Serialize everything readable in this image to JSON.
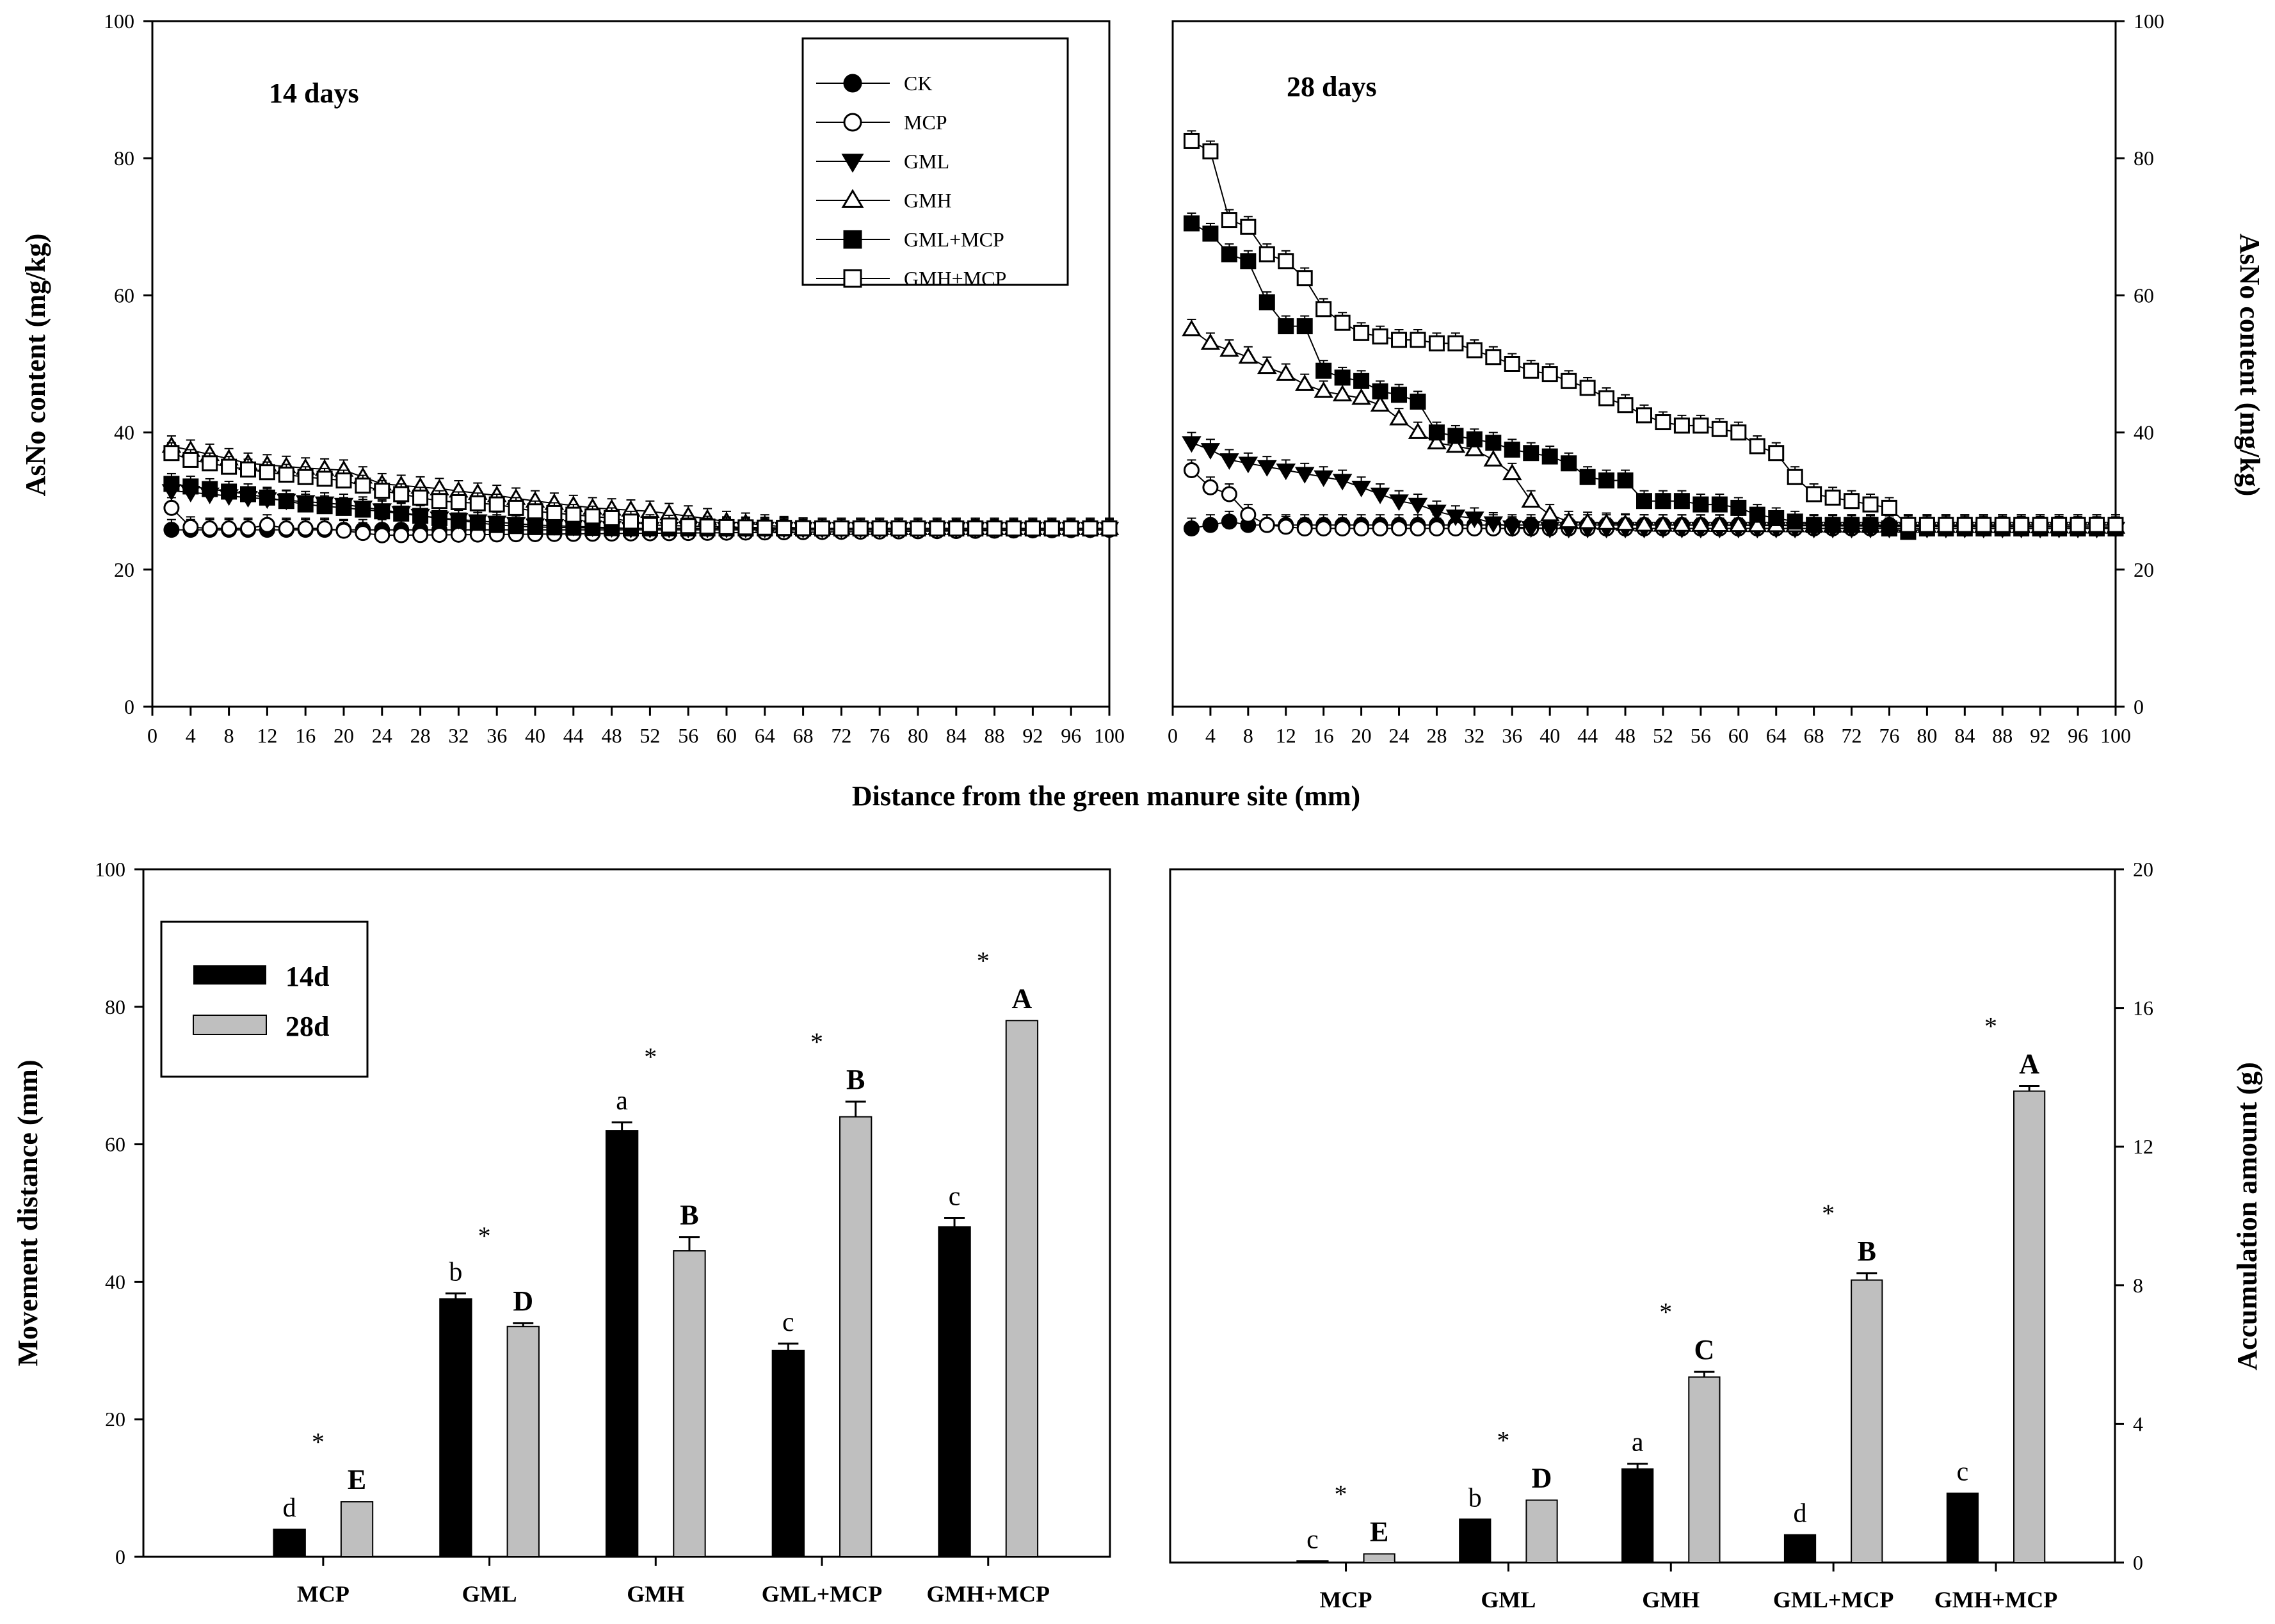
{
  "figure": {
    "shared_xlabel": "Distance from the green manure site (mm)"
  },
  "chart_data": [
    {
      "id": "panel-a",
      "type": "line",
      "title": "14 days",
      "xlabel": "Distance from the green manure site (mm)",
      "ylabel": "AsNo content (mg/kg)",
      "xlim": [
        0,
        100
      ],
      "ylim": [
        0,
        100
      ],
      "xticks": [
        0,
        4,
        8,
        12,
        16,
        20,
        24,
        28,
        32,
        36,
        40,
        44,
        48,
        52,
        56,
        60,
        64,
        68,
        72,
        76,
        80,
        84,
        88,
        92,
        96,
        100
      ],
      "yticks": [
        0,
        20,
        40,
        60,
        80,
        100
      ],
      "legend": {
        "position": "top-right",
        "entries": [
          "CK",
          "MCP",
          "GML",
          "GMH",
          "GML+MCP",
          "GMH+MCP"
        ]
      },
      "series": [
        {
          "name": "CK",
          "marker": "circle-filled",
          "points": [
            [
              2,
              25.8
            ],
            [
              96,
              25.8
            ],
            [
              100,
              25.8
            ]
          ]
        },
        {
          "name": "MCP",
          "marker": "circle-open",
          "points": [
            [
              2,
              29
            ],
            [
              4,
              26.2
            ],
            [
              6,
              26
            ],
            [
              8,
              26
            ],
            [
              10,
              26
            ],
            [
              12,
              26.5
            ],
            [
              14,
              26
            ],
            [
              16,
              26
            ],
            [
              18,
              26
            ],
            [
              24,
              25
            ],
            [
              100,
              25.8
            ]
          ]
        },
        {
          "name": "GML",
          "marker": "triangle-down-filled",
          "points": [
            [
              2,
              31.5
            ],
            [
              10,
              30.5
            ],
            [
              20,
              29.5
            ],
            [
              30,
              27.5
            ],
            [
              40,
              26.5
            ],
            [
              50,
              26
            ],
            [
              60,
              26
            ],
            [
              100,
              26
            ]
          ]
        },
        {
          "name": "GMH",
          "marker": "triangle-up-open",
          "points": [
            [
              2,
              38
            ],
            [
              6,
              36.8
            ],
            [
              10,
              35.5
            ],
            [
              16,
              34.8
            ],
            [
              20,
              34.5
            ],
            [
              24,
              32.5
            ],
            [
              30,
              31.8
            ],
            [
              36,
              30.8
            ],
            [
              40,
              30
            ],
            [
              46,
              29
            ],
            [
              52,
              28.5
            ],
            [
              56,
              27.8
            ],
            [
              60,
              27
            ],
            [
              64,
              26.5
            ],
            [
              68,
              26
            ],
            [
              100,
              26
            ]
          ]
        },
        {
          "name": "GML+MCP",
          "marker": "square-filled",
          "points": [
            [
              2,
              32.5
            ],
            [
              10,
              31
            ],
            [
              16,
              29.5
            ],
            [
              20,
              29
            ],
            [
              24,
              28.5
            ],
            [
              30,
              27.5
            ],
            [
              36,
              26.5
            ],
            [
              40,
              26.2
            ],
            [
              50,
              26
            ],
            [
              100,
              26
            ]
          ]
        },
        {
          "name": "GMH+MCP",
          "marker": "square-open",
          "points": [
            [
              2,
              37
            ],
            [
              4,
              36
            ],
            [
              8,
              35
            ],
            [
              12,
              34.2
            ],
            [
              16,
              33.5
            ],
            [
              20,
              33
            ],
            [
              24,
              31.5
            ],
            [
              30,
              30
            ],
            [
              36,
              29.5
            ],
            [
              40,
              28.5
            ],
            [
              44,
              28
            ],
            [
              48,
              27.5
            ],
            [
              52,
              26.5
            ],
            [
              60,
              26.2
            ],
            [
              70,
              26
            ],
            [
              100,
              26
            ]
          ]
        }
      ]
    },
    {
      "id": "panel-b",
      "type": "line",
      "title": "28 days",
      "xlabel": "Distance from the green manure site (mm)",
      "ylabel": "AsNo content (mg/kg)",
      "xlim": [
        0,
        100
      ],
      "ylim": [
        0,
        100
      ],
      "xticks": [
        0,
        4,
        8,
        12,
        16,
        20,
        24,
        28,
        32,
        36,
        40,
        44,
        48,
        52,
        56,
        60,
        64,
        68,
        72,
        76,
        80,
        84,
        88,
        92,
        96,
        100
      ],
      "yticks": [
        0,
        20,
        40,
        60,
        80,
        100
      ],
      "series": [
        {
          "name": "CK",
          "marker": "circle-filled",
          "points": [
            [
              2,
              26
            ],
            [
              4,
              26.5
            ],
            [
              6,
              27
            ],
            [
              8,
              26.5
            ],
            [
              100,
              26.5
            ]
          ]
        },
        {
          "name": "MCP",
          "marker": "circle-open",
          "points": [
            [
              2,
              34.5
            ],
            [
              4,
              32
            ],
            [
              6,
              31
            ],
            [
              8,
              28
            ],
            [
              10,
              26.5
            ],
            [
              14,
              26
            ],
            [
              20,
              26
            ],
            [
              100,
              26
            ]
          ]
        },
        {
          "name": "GML",
          "marker": "triangle-down-filled",
          "points": [
            [
              2,
              38.5
            ],
            [
              4,
              37.5
            ],
            [
              6,
              36
            ],
            [
              8,
              35.5
            ],
            [
              10,
              35
            ],
            [
              12,
              34.5
            ],
            [
              14,
              34
            ],
            [
              16,
              33.5
            ],
            [
              18,
              33
            ],
            [
              20,
              32
            ],
            [
              22,
              31
            ],
            [
              24,
              30
            ],
            [
              26,
              29.5
            ],
            [
              28,
              28.5
            ],
            [
              30,
              27.8
            ],
            [
              32,
              27.5
            ],
            [
              34,
              26.8
            ],
            [
              36,
              26.2
            ],
            [
              40,
              26
            ],
            [
              100,
              26
            ]
          ]
        },
        {
          "name": "GMH",
          "marker": "triangle-up-open",
          "points": [
            [
              2,
              55
            ],
            [
              4,
              53
            ],
            [
              6,
              52
            ],
            [
              8,
              51
            ],
            [
              10,
              49.5
            ],
            [
              12,
              48.5
            ],
            [
              14,
              47
            ],
            [
              16,
              46
            ],
            [
              18,
              45.5
            ],
            [
              20,
              45
            ],
            [
              22,
              44
            ],
            [
              24,
              42
            ],
            [
              26,
              40
            ],
            [
              28,
              38.5
            ],
            [
              30,
              38
            ],
            [
              32,
              37.5
            ],
            [
              34,
              36
            ],
            [
              36,
              34
            ],
            [
              38,
              30
            ],
            [
              40,
              28
            ],
            [
              42,
              27
            ],
            [
              50,
              26.5
            ],
            [
              100,
              26.2
            ]
          ]
        },
        {
          "name": "GML+MCP",
          "marker": "square-filled",
          "points": [
            [
              2,
              70.5
            ],
            [
              4,
              69
            ],
            [
              6,
              66
            ],
            [
              8,
              65
            ],
            [
              10,
              59
            ],
            [
              12,
              55.5
            ],
            [
              14,
              55.5
            ],
            [
              16,
              49
            ],
            [
              18,
              48
            ],
            [
              20,
              47.5
            ],
            [
              22,
              46
            ],
            [
              24,
              45.5
            ],
            [
              26,
              44.5
            ],
            [
              28,
              40
            ],
            [
              30,
              39.5
            ],
            [
              32,
              39
            ],
            [
              34,
              38.5
            ],
            [
              36,
              37.5
            ],
            [
              38,
              37
            ],
            [
              40,
              36.5
            ],
            [
              42,
              35.5
            ],
            [
              44,
              33.5
            ],
            [
              46,
              33
            ],
            [
              48,
              33
            ],
            [
              50,
              30
            ],
            [
              52,
              30
            ],
            [
              54,
              30
            ],
            [
              56,
              29.5
            ],
            [
              58,
              29.5
            ],
            [
              60,
              29
            ],
            [
              62,
              28
            ],
            [
              64,
              27.5
            ],
            [
              66,
              27
            ],
            [
              68,
              26.5
            ],
            [
              70,
              26.5
            ],
            [
              72,
              26.5
            ],
            [
              74,
              26.5
            ],
            [
              76,
              26
            ],
            [
              78,
              25.5
            ],
            [
              80,
              26
            ],
            [
              100,
              26
            ]
          ]
        },
        {
          "name": "GMH+MCP",
          "marker": "square-open",
          "points": [
            [
              2,
              82.5
            ],
            [
              4,
              81
            ],
            [
              6,
              71
            ],
            [
              8,
              70
            ],
            [
              10,
              66
            ],
            [
              12,
              65
            ],
            [
              14,
              62.5
            ],
            [
              16,
              58
            ],
            [
              18,
              56
            ],
            [
              20,
              54.5
            ],
            [
              22,
              54
            ],
            [
              24,
              53.5
            ],
            [
              26,
              53.5
            ],
            [
              28,
              53
            ],
            [
              30,
              53
            ],
            [
              32,
              52
            ],
            [
              34,
              51
            ],
            [
              36,
              50
            ],
            [
              38,
              49
            ],
            [
              40,
              48.5
            ],
            [
              42,
              47.5
            ],
            [
              44,
              46.5
            ],
            [
              46,
              45
            ],
            [
              48,
              44
            ],
            [
              50,
              42.5
            ],
            [
              52,
              41.5
            ],
            [
              54,
              41
            ],
            [
              56,
              41
            ],
            [
              58,
              40.5
            ],
            [
              60,
              40
            ],
            [
              62,
              38
            ],
            [
              64,
              37
            ],
            [
              66,
              33.5
            ],
            [
              68,
              31
            ],
            [
              70,
              30.5
            ],
            [
              72,
              30
            ],
            [
              74,
              29.5
            ],
            [
              76,
              29
            ],
            [
              78,
              26.5
            ],
            [
              80,
              26.5
            ],
            [
              100,
              26.5
            ]
          ]
        }
      ]
    },
    {
      "id": "panel-c",
      "type": "bar",
      "ylabel": "Movement distance (mm)",
      "ylim": [
        0,
        100
      ],
      "yticks": [
        0,
        20,
        40,
        60,
        80,
        100
      ],
      "categories": [
        "MCP",
        "GML",
        "GMH",
        "GML+MCP",
        "GMH+MCP"
      ],
      "legend": {
        "position": "top-left",
        "entries": [
          "14d",
          "28d"
        ]
      },
      "series": [
        {
          "name": "14d",
          "color": "#000000",
          "values": [
            4,
            37.5,
            62,
            30,
            48
          ],
          "errors": [
            0,
            0.8,
            1.2,
            1,
            1.3
          ],
          "sig": [
            "d",
            "b",
            "a",
            "c",
            "c"
          ]
        },
        {
          "name": "28d",
          "color": "#bfbfbf",
          "values": [
            8,
            33.5,
            44.5,
            64,
            78
          ],
          "errors": [
            0,
            0.5,
            2,
            2.2,
            0
          ],
          "sig": [
            "E",
            "D",
            "B",
            "B",
            "A"
          ]
        }
      ],
      "stars": [
        "*",
        "*",
        "*",
        "*",
        "*"
      ],
      "star_on": [
        "28d",
        "28d",
        "28d",
        "28d",
        "28d"
      ]
    },
    {
      "id": "panel-d",
      "type": "bar",
      "ylabel": "Accumulation amount (g)",
      "ylim": [
        0,
        20
      ],
      "yticks": [
        0,
        4,
        8,
        12,
        16,
        20
      ],
      "categories": [
        "MCP",
        "GML",
        "GMH",
        "GML+MCP",
        "GMH+MCP"
      ],
      "series": [
        {
          "name": "14d",
          "color": "#000000",
          "values": [
            0.05,
            1.25,
            2.7,
            0.8,
            2
          ],
          "errors": [
            0,
            0,
            0.15,
            0,
            0
          ],
          "sig": [
            "c",
            "b",
            "a",
            "d",
            "c"
          ]
        },
        {
          "name": "28d",
          "color": "#bfbfbf",
          "values": [
            0.25,
            1.8,
            5.35,
            8.15,
            13.6
          ],
          "errors": [
            0,
            0,
            0.15,
            0.2,
            0.15
          ],
          "sig": [
            "E",
            "D",
            "C",
            "B",
            "A"
          ]
        }
      ],
      "stars": [
        "*",
        "*",
        "*",
        "*",
        "*"
      ]
    }
  ]
}
